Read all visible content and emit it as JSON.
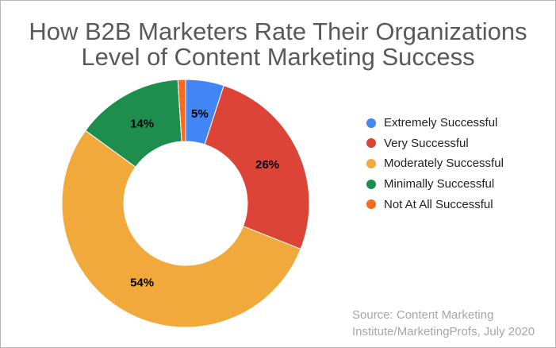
{
  "chart_data": {
    "type": "pie",
    "title_line1": "How B2B Marketers Rate Their Organizations",
    "title_line2": "Level of Content Marketing Success",
    "categories": [
      "Extremely Successful",
      "Very Successful",
      "Moderately Successful",
      "Minimally Successful",
      "Not At All Successful"
    ],
    "values": [
      5,
      26,
      54,
      14,
      1
    ],
    "data_labels": [
      "5%",
      "26%",
      "54%",
      "14%",
      ""
    ],
    "colors": [
      "#4285f4",
      "#db4437",
      "#f2a93b",
      "#1e8e4f",
      "#fa6a1e"
    ],
    "donut": true,
    "legend_position": "right",
    "source_line1": "Source: Content Marketing",
    "source_line2": "Institute/MarketingProfs, July 2020"
  }
}
